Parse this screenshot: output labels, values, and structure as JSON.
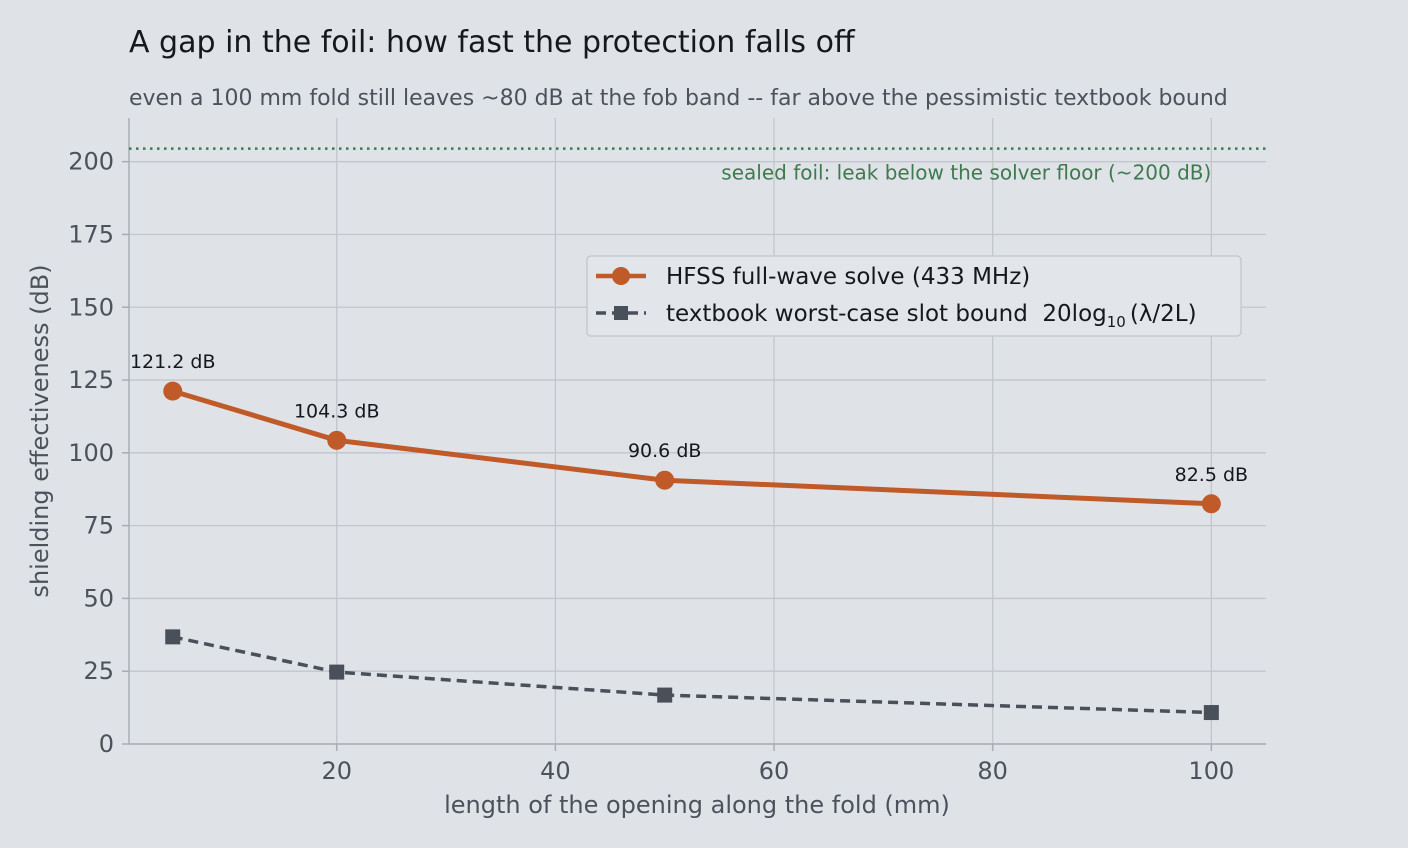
{
  "colors": {
    "background": "#dfe3e8",
    "hfss": "#c05a28",
    "bound": "#4a5059",
    "reference": "#3e7a4e"
  },
  "chart_data": {
    "type": "line",
    "title": "A gap in the foil: how fast the protection falls off",
    "subtitle": "even a 100 mm fold still leaves ~80 dB at the fob band -- far above the pessimistic textbook bound",
    "xlabel": "length of the opening along the fold (mm)",
    "ylabel": "shielding effectiveness (dB)",
    "xlim": [
      1,
      105
    ],
    "ylim": [
      0,
      215
    ],
    "xticks": [
      20,
      40,
      60,
      80,
      100
    ],
    "yticks": [
      0,
      25,
      50,
      75,
      100,
      125,
      150,
      175,
      200
    ],
    "grid": true,
    "legend_position": "upper-right",
    "x": [
      5,
      20,
      50,
      100
    ],
    "series": [
      {
        "name": "HFSS full-wave solve (433 MHz)",
        "values": [
          121.2,
          104.3,
          90.6,
          82.5
        ],
        "labels": [
          "121.2 dB",
          "104.3 dB",
          "90.6 dB",
          "82.5 dB"
        ],
        "marker": "circle",
        "line_style": "solid",
        "color": "#c05a28"
      },
      {
        "name_prefix": "textbook worst-case slot bound  20log",
        "name_subscript": "10",
        "name_suffix": "(λ/2L)",
        "values": [
          36.8,
          24.7,
          16.8,
          10.8
        ],
        "marker": "square",
        "line_style": "dashed",
        "color": "#4a5059"
      }
    ],
    "reference_line": {
      "y": 204.5,
      "label": "sealed foil: leak below the solver floor (~200 dB)",
      "line_style": "dotted",
      "color": "#3e7a4e"
    }
  }
}
